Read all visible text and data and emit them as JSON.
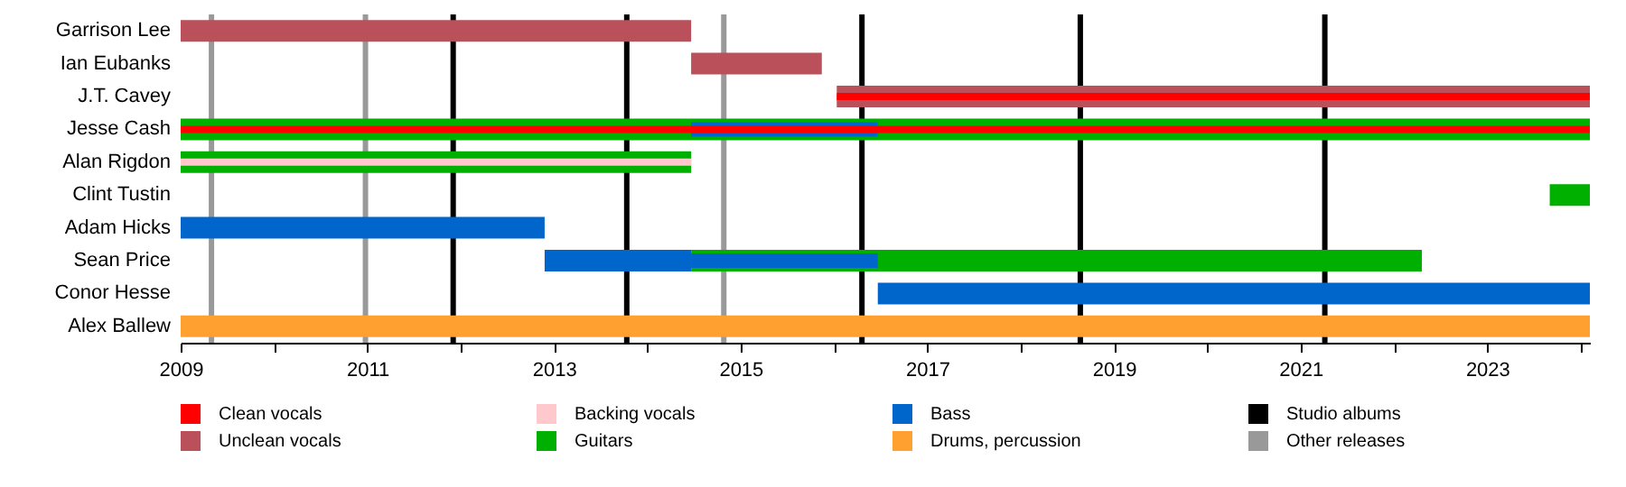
{
  "chart_data": {
    "type": "bar",
    "orientation": "horizontal",
    "legend": "bottom",
    "grid": false,
    "categories": [
      "Garrison Lee",
      "Ian Eubanks",
      "J.T. Cavey",
      "Jesse Cash",
      "Alan Rigdon",
      "Clint Tustin",
      "Adam Hicks",
      "Sean Price",
      "Conor Hesse",
      "Alex Ballew"
    ],
    "series": [
      {
        "name": "Clean vocals",
        "color": "#ff0000",
        "base": [
          null,
          null,
          2016.03,
          2009,
          null,
          null,
          null,
          null,
          null,
          null
        ],
        "values": [
          null,
          null,
          8.07,
          15.1,
          null,
          null,
          null,
          null,
          null,
          null
        ]
      },
      {
        "name": "Unclean vocals",
        "color": "#b9505a",
        "base": [
          2009,
          2014.47,
          2016.03,
          null,
          null,
          null,
          null,
          null,
          null,
          null
        ],
        "values": [
          5.47,
          1.4,
          8.07,
          null,
          null,
          null,
          null,
          null,
          null,
          null
        ]
      },
      {
        "name": "Backing vocals",
        "color": "#ffc8cc",
        "base": [
          null,
          null,
          null,
          null,
          2009,
          null,
          null,
          null,
          null,
          null
        ],
        "values": [
          null,
          null,
          null,
          null,
          5.47,
          null,
          null,
          null,
          null,
          null
        ]
      },
      {
        "name": "Guitars",
        "color": "#00b000",
        "base": [
          null,
          null,
          null,
          2009,
          2009,
          2023.67,
          null,
          2014.47,
          null,
          null
        ],
        "values": [
          null,
          null,
          null,
          15.1,
          5.47,
          0.43,
          null,
          7.83,
          null,
          null
        ]
      },
      {
        "name": "Bass",
        "color": "#0066cc",
        "base": [
          null,
          null,
          null,
          null,
          null,
          null,
          2009,
          2012.9,
          2016.47,
          null
        ],
        "values": [
          null,
          null,
          null,
          null,
          null,
          null,
          3.9,
          1.57,
          7.63,
          null
        ]
      },
      {
        "name": "Drums, percussion",
        "color": "#ffa030",
        "base": [
          null,
          null,
          null,
          null,
          null,
          null,
          null,
          null,
          null,
          2009
        ],
        "values": [
          null,
          null,
          null,
          null,
          null,
          null,
          null,
          null,
          null,
          15.1
        ]
      },
      {
        "color": "#0066cc",
        "base": [
          null,
          null,
          null,
          2014.47,
          null,
          null,
          null,
          2014.47,
          null,
          null
        ],
        "values": [
          null,
          null,
          null,
          2.0,
          null,
          null,
          null,
          2.0,
          null,
          null
        ]
      }
    ],
    "xlim": [
      2009,
      2024.1
    ],
    "xticks": [
      2009,
      {
        "value": 2010,
        "label": null
      },
      2011,
      {
        "value": 2012,
        "label": null
      },
      2013,
      {
        "value": 2014,
        "label": null
      },
      2015,
      {
        "value": 2016,
        "label": null
      },
      2017,
      {
        "value": 2018,
        "label": null
      },
      2019,
      {
        "value": 2020,
        "label": null
      },
      2021,
      {
        "value": 2022,
        "label": null
      },
      2023,
      {
        "value": 2024,
        "label": null
      }
    ],
    "ref_lines": [
      {
        "axis": "x",
        "value": 2011.92,
        "label": "Studio albums",
        "color": "#000000"
      },
      {
        "axis": "x",
        "value": 2013.78,
        "color": "#000000"
      },
      {
        "axis": "x",
        "value": 2016.3,
        "color": "#000000"
      },
      {
        "axis": "x",
        "value": 2018.64,
        "color": "#000000"
      },
      {
        "axis": "x",
        "value": 2021.26,
        "color": "#000000"
      },
      {
        "axis": "x",
        "value": 2009.33,
        "label": "Other releases",
        "color": "#999999"
      },
      {
        "axis": "x",
        "value": 2010.98,
        "color": "#999999"
      },
      {
        "axis": "x",
        "value": 2014.82,
        "color": "#999999"
      }
    ]
  }
}
